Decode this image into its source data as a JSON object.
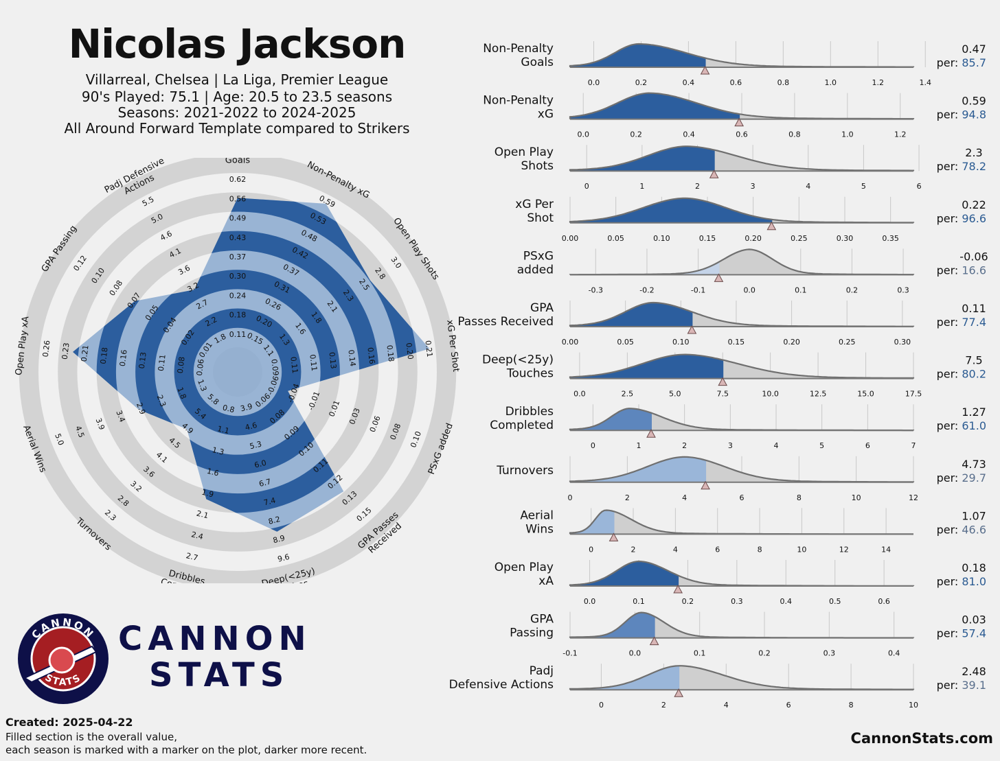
{
  "header": {
    "title": "Nicolas Jackson",
    "subtitle_lines": [
      "Villarreal, Chelsea | La Liga, Premier League",
      "90's Played: 75.1 | Age: 20.5 to 23.5 seasons",
      "Seasons: 2021-2022 to 2024-2025",
      "All Around Forward Template compared to Strikers"
    ]
  },
  "colors": {
    "accent": "#2c5e9e",
    "accent_light": "#8aa9cf",
    "grey_ring": "#d3d3d3",
    "brand_navy": "#0e1048",
    "brand_red": "#a51e22"
  },
  "brand": {
    "logo_top_text": "CANNON",
    "logo_bottom_text": "STATS",
    "word1": "CANNON",
    "word2": "STATS"
  },
  "footer": {
    "created": "Created: 2025-04-22",
    "note_line1": "Filled section is the overall value,",
    "note_line2": "each season is marked with a marker on the plot, darker more recent.",
    "site": "CannonStats.com"
  },
  "chart_data": [
    {
      "type": "radar",
      "axes": [
        {
          "label": "Non-Penalty\nGoals",
          "ticks": [
            "0.11",
            "0.18",
            "0.24",
            "0.30",
            "0.37",
            "0.43",
            "0.49",
            "0.56",
            "0.62"
          ],
          "percentile": 85.7
        },
        {
          "label": "Non-Penalty xG",
          "ticks": [
            "0.15",
            "0.20",
            "0.26",
            "0.31",
            "0.37",
            "0.42",
            "0.48",
            "0.53",
            "0.59"
          ],
          "percentile": 94.8
        },
        {
          "label": "Open Play Shots",
          "ticks": [
            "1.1",
            "1.3",
            "1.6",
            "1.8",
            "2.1",
            "2.3",
            "2.5",
            "2.8",
            "3.0"
          ],
          "percentile": 78.2
        },
        {
          "label": "xG Per Shot",
          "ticks": [
            "0.09",
            "0.11",
            "0.11",
            "0.13",
            "0.14",
            "0.16",
            "0.18",
            "0.20",
            "0.21"
          ],
          "percentile": 96.6
        },
        {
          "label": "PSxG added",
          "ticks": [
            "-0.06",
            "-0.04",
            "-0.01",
            "0.01",
            "0.03",
            "0.06",
            "0.08",
            "0.10"
          ],
          "percentile": 16.6
        },
        {
          "label": "GPA Passes\nReceived",
          "ticks": [
            "0.06",
            "0.08",
            "0.09",
            "0.10",
            "0.11",
            "0.12",
            "0.13",
            "0.15"
          ],
          "percentile": 77.4
        },
        {
          "label": "Deep(<25y)\nTouches",
          "ticks": [
            "3.9",
            "4.6",
            "5.3",
            "6.0",
            "6.7",
            "7.4",
            "8.2",
            "8.9",
            "9.6"
          ],
          "percentile": 80.2
        },
        {
          "label": "Dribbles\nCompleted",
          "ticks": [
            "0.8",
            "1.1",
            "1.3",
            "1.6",
            "1.9",
            "2.1",
            "2.4",
            "2.7"
          ],
          "percentile": 61.0
        },
        {
          "label": "Turnovers",
          "ticks": [
            "5.8",
            "5.4",
            "4.9",
            "4.5",
            "4.1",
            "3.6",
            "3.2",
            "2.8",
            "2.3"
          ],
          "percentile": 29.7
        },
        {
          "label": "Aerial Wins",
          "ticks": [
            "1.3",
            "1.8",
            "2.3",
            "2.9",
            "3.4",
            "3.9",
            "4.5",
            "5.0"
          ],
          "percentile": 46.6
        },
        {
          "label": "Open Play xA",
          "ticks": [
            "0.06",
            "0.08",
            "0.11",
            "0.13",
            "0.16",
            "0.18",
            "0.21",
            "0.23",
            "0.26"
          ],
          "percentile": 81.0
        },
        {
          "label": "GPA Passing",
          "ticks": [
            "0.01",
            "0.02",
            "0.04",
            "0.05",
            "0.07",
            "0.08",
            "0.10",
            "0.12"
          ],
          "percentile": 57.4
        },
        {
          "label": "Padj Defensive\nActions",
          "ticks": [
            "1.8",
            "2.2",
            "2.7",
            "3.2",
            "3.6",
            "4.1",
            "4.6",
            "5.0",
            "5.5"
          ],
          "percentile": 39.1
        }
      ]
    },
    {
      "type": "density",
      "rows": [
        {
          "label": "Non-Penalty\nGoals",
          "value": "0.47",
          "per": "85.7",
          "percentile": 85.7,
          "min": -0.1,
          "max": 1.35,
          "ticks": [
            "0.0",
            "0.2",
            "0.4",
            "0.6",
            "0.8",
            "1.0",
            "1.2",
            "1.4"
          ],
          "tick_values": [
            0,
            0.2,
            0.4,
            0.6,
            0.8,
            1.0,
            1.2,
            1.4
          ],
          "peak": 0.19,
          "sl": 0.1,
          "sr": 0.2,
          "v": 0.47,
          "h": 34
        },
        {
          "label": "Non-Penalty\nxG",
          "value": "0.59",
          "per": "94.8",
          "percentile": 94.8,
          "min": -0.05,
          "max": 1.25,
          "ticks": [
            "0.0",
            "0.2",
            "0.4",
            "0.6",
            "0.8",
            "1.0",
            "1.2"
          ],
          "tick_values": [
            0,
            0.2,
            0.4,
            0.6,
            0.8,
            1.0,
            1.2
          ],
          "peak": 0.25,
          "sl": 0.12,
          "sr": 0.18,
          "v": 0.59,
          "h": 38
        },
        {
          "label": "Open Play\nShots",
          "value": "2.3",
          "per": "78.2",
          "percentile": 78.2,
          "min": -0.3,
          "max": 5.9,
          "ticks": [
            "0",
            "1",
            "2",
            "3",
            "4",
            "5",
            "6"
          ],
          "tick_values": [
            0,
            1,
            2,
            3,
            4,
            5,
            6
          ],
          "peak": 1.8,
          "sl": 0.7,
          "sr": 0.9,
          "v": 2.3,
          "h": 36
        },
        {
          "label": "xG Per\nShot",
          "value": "0.22",
          "per": "96.6",
          "percentile": 96.6,
          "min": 0.0,
          "max": 0.375,
          "ticks": [
            "0.00",
            "0.05",
            "0.10",
            "0.15",
            "0.20",
            "0.25",
            "0.30",
            "0.35"
          ],
          "tick_values": [
            0,
            0.05,
            0.1,
            0.15,
            0.2,
            0.25,
            0.3,
            0.35
          ],
          "peak": 0.125,
          "sl": 0.045,
          "sr": 0.045,
          "v": 0.22,
          "h": 36
        },
        {
          "label": "PSxG\nadded",
          "value": "-0.06",
          "per": "16.6",
          "percentile": 16.6,
          "min": -0.35,
          "max": 0.32,
          "ticks": [
            "-0.3",
            "-0.2",
            "-0.1",
            "0.0",
            "0.1",
            "0.2",
            "0.3"
          ],
          "tick_values": [
            -0.3,
            -0.2,
            -0.1,
            0,
            0.1,
            0.2,
            0.3
          ],
          "peak": 0.0,
          "sl": 0.05,
          "sr": 0.045,
          "v": -0.06,
          "h": 37
        },
        {
          "label": "GPA\nPasses Received",
          "value": "0.11",
          "per": "77.4",
          "percentile": 77.4,
          "min": 0.0,
          "max": 0.31,
          "ticks": [
            "0.00",
            "0.05",
            "0.10",
            "0.15",
            "0.20",
            "0.25",
            "0.30"
          ],
          "tick_values": [
            0,
            0.05,
            0.1,
            0.15,
            0.2,
            0.25,
            0.3
          ],
          "peak": 0.075,
          "sl": 0.025,
          "sr": 0.035,
          "v": 0.11,
          "h": 35
        },
        {
          "label": "Deep(<25y)\nTouches",
          "value": "7.5",
          "per": "80.2",
          "percentile": 80.2,
          "min": -0.5,
          "max": 17.5,
          "ticks": [
            "0.0",
            "2.5",
            "5.0",
            "7.5",
            "10.0",
            "12.5",
            "15.0",
            "17.5"
          ],
          "tick_values": [
            0,
            2.5,
            5,
            7.5,
            10,
            12.5,
            15,
            17.5
          ],
          "peak": 5.5,
          "sl": 2.2,
          "sr": 2.8,
          "v": 7.5,
          "h": 35
        },
        {
          "label": "Dribbles\nCompleted",
          "value": "1.27",
          "per": "61.0",
          "percentile": 61.0,
          "min": -0.5,
          "max": 7.0,
          "ticks": [
            "0",
            "1",
            "2",
            "3",
            "4",
            "5",
            "6",
            "7"
          ],
          "tick_values": [
            0,
            1,
            2,
            3,
            4,
            5,
            6,
            7
          ],
          "peak": 0.8,
          "sl": 0.4,
          "sr": 0.7,
          "v": 1.27,
          "h": 32
        },
        {
          "label": "Turnovers",
          "value": "4.73",
          "per": "29.7",
          "percentile": 29.7,
          "min": 0.0,
          "max": 12.0,
          "ticks": [
            "0",
            "2",
            "4",
            "6",
            "8",
            "10",
            "12"
          ],
          "tick_values": [
            0,
            2,
            4,
            6,
            8,
            10,
            12
          ],
          "peak": 4.0,
          "sl": 1.3,
          "sr": 1.4,
          "v": 4.73,
          "h": 37
        },
        {
          "label": "Aerial\nWins",
          "value": "1.07",
          "per": "46.6",
          "percentile": 46.6,
          "min": -1.0,
          "max": 15.3,
          "ticks": [
            "0",
            "2",
            "4",
            "6",
            "8",
            "10",
            "12",
            "14"
          ],
          "tick_values": [
            0,
            2,
            4,
            6,
            8,
            10,
            12,
            14
          ],
          "peak": 0.7,
          "sl": 0.5,
          "sr": 1.2,
          "v": 1.07,
          "h": 35
        },
        {
          "label": "Open Play\nxA",
          "value": "0.18",
          "per": "81.0",
          "percentile": 81.0,
          "min": -0.04,
          "max": 0.66,
          "ticks": [
            "0.0",
            "0.1",
            "0.2",
            "0.3",
            "0.4",
            "0.5",
            "0.6"
          ],
          "tick_values": [
            0,
            0.1,
            0.2,
            0.3,
            0.4,
            0.5,
            0.6
          ],
          "peak": 0.1,
          "sl": 0.045,
          "sr": 0.06,
          "v": 0.18,
          "h": 36
        },
        {
          "label": "GPA\nPassing",
          "value": "0.03",
          "per": "57.4",
          "percentile": 57.4,
          "min": -0.1,
          "max": 0.43,
          "ticks": [
            "-0.1",
            "0.0",
            "0.1",
            "0.2",
            "0.3",
            "0.4"
          ],
          "tick_values": [
            -0.1,
            0,
            0.1,
            0.2,
            0.3,
            0.4
          ],
          "peak": 0.01,
          "sl": 0.025,
          "sr": 0.035,
          "v": 0.03,
          "h": 37
        },
        {
          "label": "Padj\nDefensive Actions",
          "value": "2.48",
          "per": "39.1",
          "percentile": 39.1,
          "min": -1.0,
          "max": 10.0,
          "ticks": [
            "0",
            "2",
            "4",
            "6",
            "8",
            "10"
          ],
          "tick_values": [
            0,
            2,
            4,
            6,
            8,
            10
          ],
          "peak": 2.5,
          "sl": 1.0,
          "sr": 1.4,
          "v": 2.48,
          "h": 35
        }
      ]
    }
  ]
}
